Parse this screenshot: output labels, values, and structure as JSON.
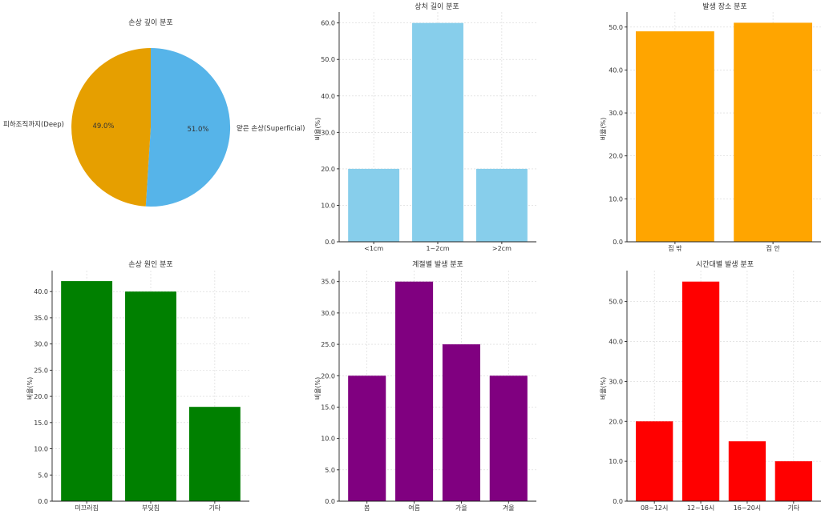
{
  "chart_data": [
    {
      "type": "pie",
      "title": "손상 깊이 분포",
      "slices": [
        {
          "label": "얕은 손상(Superficial)",
          "value": 51.0,
          "pct_label": "51.0%",
          "color": "#56b4e9"
        },
        {
          "label": "피하조직까지(Deep)",
          "value": 49.0,
          "pct_label": "49.0%",
          "color": "#e69f00"
        }
      ]
    },
    {
      "type": "bar",
      "title": "상처 길이 분포",
      "xlabel": "",
      "ylabel": "비율(%)",
      "categories": [
        "<1cm",
        "1~2cm",
        ">2cm"
      ],
      "values": [
        20,
        60,
        20
      ],
      "ylim": [
        0,
        63
      ],
      "yticks": [
        "0.0",
        "10.0",
        "20.0",
        "30.0",
        "40.0",
        "50.0",
        "60.0"
      ],
      "color": "#87ceeb",
      "grid": true
    },
    {
      "type": "bar",
      "title": "발생 장소 분포",
      "xlabel": "",
      "ylabel": "비율(%)",
      "categories": [
        "집 밖",
        "집 안"
      ],
      "values": [
        49,
        51
      ],
      "ylim": [
        0,
        53.5
      ],
      "yticks": [
        "0.0",
        "10.0",
        "20.0",
        "30.0",
        "40.0",
        "50.0"
      ],
      "color": "#ffa500",
      "grid": true
    },
    {
      "type": "bar",
      "title": "손상 원인 분포",
      "xlabel": "",
      "ylabel": "비율(%)",
      "categories": [
        "미끄러짐",
        "부딪침",
        "기타"
      ],
      "values": [
        42,
        40,
        18
      ],
      "ylim": [
        0,
        44
      ],
      "yticks": [
        "0.0",
        "5.0",
        "10.0",
        "15.0",
        "20.0",
        "25.0",
        "30.0",
        "35.0",
        "40.0"
      ],
      "color": "#008000",
      "grid": true
    },
    {
      "type": "bar",
      "title": "계절별 발생 분포",
      "xlabel": "",
      "ylabel": "비율(%)",
      "categories": [
        "봄",
        "여름",
        "가을",
        "겨울"
      ],
      "values": [
        20,
        35,
        25,
        20
      ],
      "ylim": [
        0,
        36.75
      ],
      "yticks": [
        "0.0",
        "5.0",
        "10.0",
        "15.0",
        "20.0",
        "25.0",
        "30.0",
        "35.0"
      ],
      "color": "#800080",
      "grid": true
    },
    {
      "type": "bar",
      "title": "시간대별 발생 분포",
      "xlabel": "",
      "ylabel": "비율(%)",
      "categories": [
        "08~12시",
        "12~16시",
        "16~20시",
        "기타"
      ],
      "values": [
        20,
        55,
        15,
        10
      ],
      "ylim": [
        0,
        57.75
      ],
      "yticks": [
        "0.0",
        "10.0",
        "20.0",
        "30.0",
        "40.0",
        "50.0"
      ],
      "color": "#ff0000",
      "grid": true
    }
  ]
}
